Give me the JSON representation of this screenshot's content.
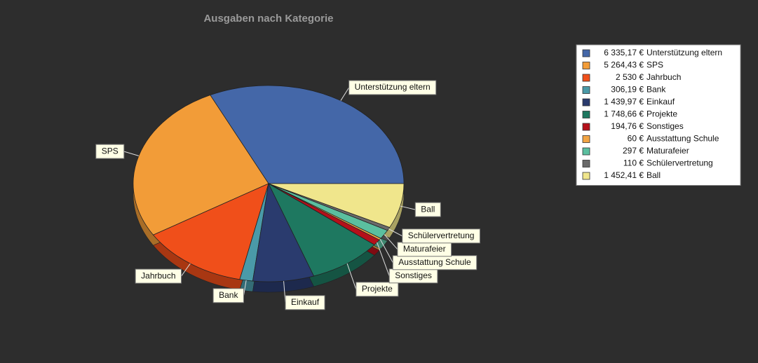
{
  "chart_data": {
    "type": "pie",
    "title": "Ausgaben nach Kategorie",
    "categories": [
      "Unterstützung eltern",
      "SPS",
      "Jahrbuch",
      "Bank",
      "Einkauf",
      "Projekte",
      "Sonstiges",
      "Ausstattung Schule",
      "Maturafeier",
      "Schülervertretung",
      "Ball"
    ],
    "values": [
      6335.17,
      5264.43,
      2530,
      306.19,
      1439.97,
      1748.66,
      194.76,
      60,
      297,
      110,
      1452.41
    ],
    "value_labels": [
      "6 335,17 €",
      "5 264,43 €",
      "2 530 €",
      "306,19 €",
      "1 439,97 €",
      "1 748,66 €",
      "194,76 €",
      "60 €",
      "297 €",
      "110 €",
      "1 452,41 €"
    ],
    "colors": [
      "#4467a8",
      "#f29c38",
      "#f04f1a",
      "#4a9aa8",
      "#2a3b6e",
      "#1e7860",
      "#b5101a",
      "#f2a444",
      "#5bbf9f",
      "#6a6a6a",
      "#f0e68c"
    ],
    "legend": "top-right"
  }
}
